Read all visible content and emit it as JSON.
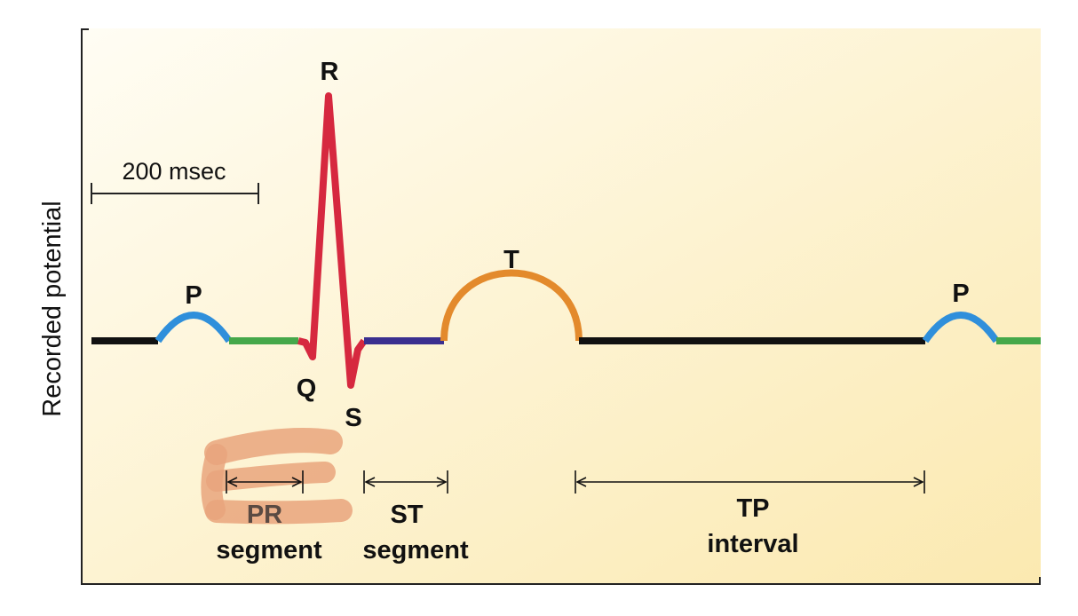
{
  "axis": {
    "y_label": "Recorded potential"
  },
  "scale_bar": {
    "label": "200 msec"
  },
  "waves": {
    "p1": "P",
    "r": "R",
    "q": "Q",
    "s": "S",
    "t": "T",
    "p2": "P"
  },
  "intervals": {
    "pr": {
      "line1": "PR",
      "line2": "segment"
    },
    "st": {
      "line1": "ST",
      "line2": "segment"
    },
    "tp": {
      "line1": "TP",
      "line2": "interval"
    }
  },
  "colors": {
    "background_light": "#fffdf4",
    "background_warm": "#fbe9b0",
    "baseline": "#111111",
    "p_wave": "#2f8fdb",
    "pr_segment": "#45a84a",
    "qrs": "#d6283f",
    "st_segment": "#3a2f8f",
    "t_wave": "#e38a2c",
    "highlight": "#e9a47c"
  }
}
